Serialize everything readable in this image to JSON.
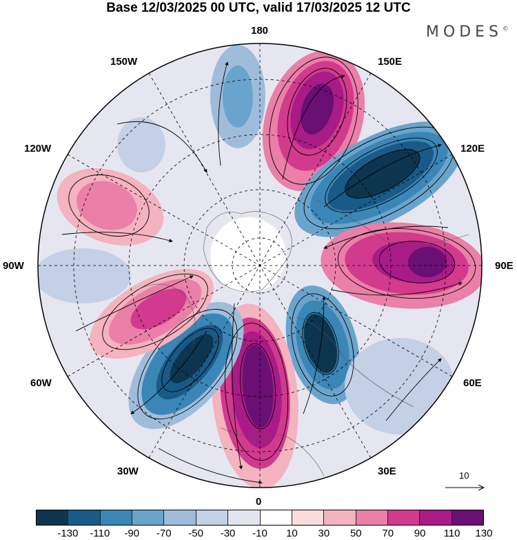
{
  "title": "Base 12/03/2025 00 UTC, valid 17/03/2025 12 UTC",
  "brand": {
    "name": "MODES",
    "mark": "©"
  },
  "longitude_labels": {
    "top": "180",
    "bottom": "0",
    "left": "90W",
    "right": "90E",
    "upper_left_1": "150W",
    "upper_left_2": "120W",
    "upper_right_1": "150E",
    "upper_right_2": "120E",
    "lower_left_1": "60W",
    "lower_left_2": "30W",
    "lower_right_1": "60E",
    "lower_right_2": "30E"
  },
  "reference_vector": {
    "label": "10"
  },
  "colorbar": {
    "colors": [
      "#0d3550",
      "#1a5a88",
      "#3a86b6",
      "#6aa4cc",
      "#9fbddb",
      "#c4d0e6",
      "#e4e4f0",
      "#ffffff",
      "#f9dcde",
      "#f3b3bf",
      "#ea7fa8",
      "#d23a8e",
      "#a91b86",
      "#6a0f74"
    ],
    "ticks": [
      "-130",
      "-110",
      "-90",
      "-70",
      "-50",
      "-30",
      "-10",
      "10",
      "30",
      "50",
      "70",
      "90",
      "110",
      "130"
    ]
  }
}
